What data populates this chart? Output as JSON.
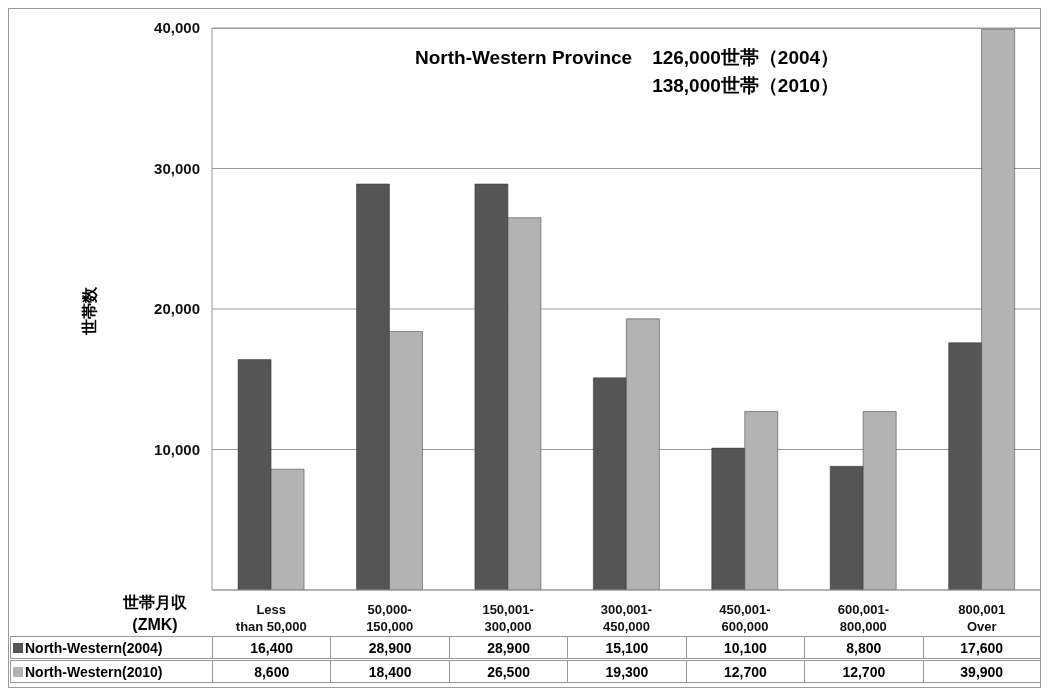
{
  "chart_data": {
    "type": "bar",
    "title": "North-Western Province",
    "annotations": [
      "126,000世帯（2004）",
      "138,000世帯（2010）"
    ],
    "xlabel": "世帯月収 (ZMK)",
    "ylabel": "世帯数",
    "categories": [
      "Less than 50,000",
      "50,000-150,000",
      "150,001-300,000",
      "300,001-450,000",
      "450,001-600,000",
      "600,001-800,000",
      "800,001 Over"
    ],
    "series": [
      {
        "name": "North-Western(2004)",
        "color": "#555555",
        "values": [
          16400,
          28900,
          28900,
          15100,
          10100,
          8800,
          17600
        ],
        "value_labels": [
          "16,400",
          "28,900",
          "28,900",
          "15,100",
          "10,100",
          "8,800",
          "17,600"
        ]
      },
      {
        "name": "North-Western(2010)",
        "color": "#b3b3b3",
        "values": [
          8600,
          18400,
          26500,
          19300,
          12700,
          12700,
          39900
        ],
        "value_labels": [
          "8,600",
          "18,400",
          "26,500",
          "19,300",
          "12,700",
          "12,700",
          "39,900"
        ]
      }
    ],
    "ylim": [
      0,
      40000
    ],
    "yticks": [
      {
        "value": 10000,
        "label": "10,000"
      },
      {
        "value": 20000,
        "label": "20,000"
      },
      {
        "value": 30000,
        "label": "30,000"
      },
      {
        "value": 40000,
        "label": "40,000"
      }
    ],
    "grid": "y",
    "legend": "bottom"
  }
}
